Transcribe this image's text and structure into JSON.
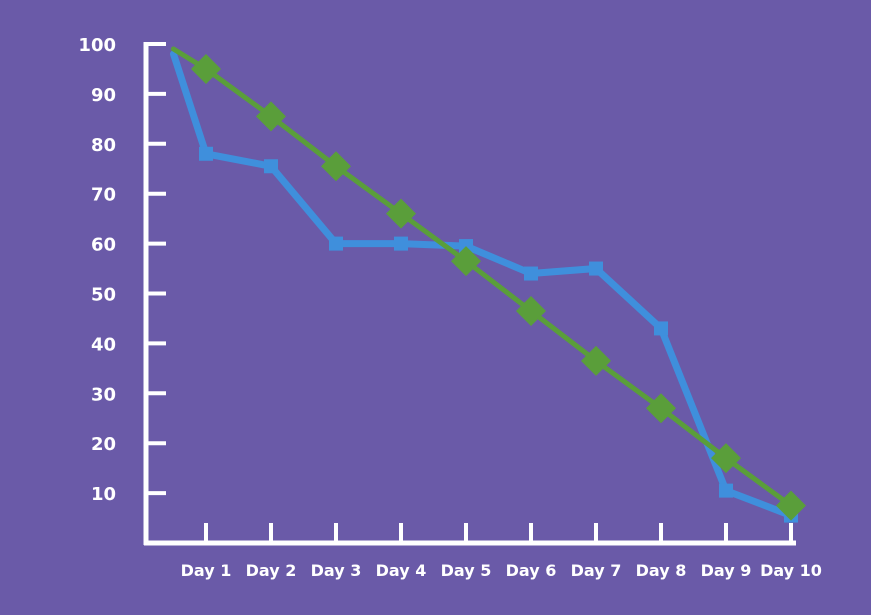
{
  "colors": {
    "background": "#6a5aa8",
    "axis": "#ffffff",
    "series_blue": "#3f8fdc",
    "series_green": "#5a9e3a"
  },
  "chart_data": {
    "type": "line",
    "title": "",
    "xlabel": "",
    "ylabel": "",
    "categories": [
      "Day 1",
      "Day 2",
      "Day 3",
      "Day 4",
      "Day 5",
      "Day 6",
      "Day 7",
      "Day 8",
      "Day 9",
      "Day 10"
    ],
    "yticks": [
      10,
      20,
      30,
      40,
      50,
      60,
      70,
      80,
      90,
      100
    ],
    "ylim": [
      0,
      100
    ],
    "grid": false,
    "legend": "none",
    "series": [
      {
        "color": "#3f8fdc",
        "marker": "square",
        "start": {
          "x": 0.5,
          "y": 98
        },
        "values": [
          78,
          75.5,
          60,
          60,
          59.5,
          54,
          55,
          43,
          10.5,
          5.5
        ]
      },
      {
        "color": "#5a9e3a",
        "marker": "diamond",
        "start": {
          "x": 0.5,
          "y": 99
        },
        "values": [
          95,
          85.5,
          75.5,
          66,
          56.5,
          46.5,
          36.5,
          27,
          17,
          7.5
        ]
      }
    ]
  }
}
